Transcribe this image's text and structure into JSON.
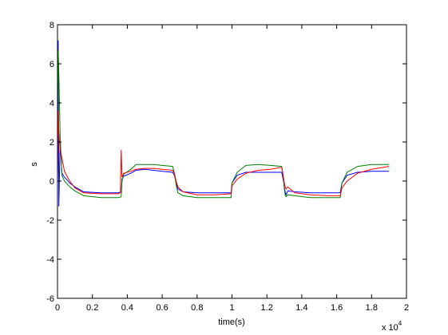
{
  "chart_data": {
    "type": "line",
    "xlabel": "time(s)",
    "ylabel": "s",
    "x_multiplier_label": "x 10",
    "x_multiplier_exponent": "4",
    "xlim": [
      0,
      20000
    ],
    "ylim": [
      -6,
      8
    ],
    "x_ticks": [
      0,
      2000,
      4000,
      6000,
      8000,
      10000,
      12000,
      14000,
      16000,
      18000,
      20000
    ],
    "x_tick_labels": [
      "0",
      "0.2",
      "0.4",
      "0.6",
      "0.8",
      "1",
      "1.2",
      "1.4",
      "1.6",
      "1.8",
      "2"
    ],
    "y_ticks": [
      -6,
      -4,
      -2,
      0,
      2,
      4,
      6,
      8
    ],
    "y_tick_labels": [
      "-6",
      "-4",
      "-2",
      "0",
      "2",
      "4",
      "6",
      "8"
    ],
    "grid": false,
    "legend": "none",
    "series": [
      {
        "color": "#0000ff",
        "points": [
          [
            0,
            0
          ],
          [
            40,
            7.2
          ],
          [
            80,
            -1.3
          ],
          [
            150,
            2
          ],
          [
            250,
            0.4
          ],
          [
            400,
            0.2
          ],
          [
            700,
            -0.1
          ],
          [
            1000,
            -0.3
          ],
          [
            1500,
            -0.55
          ],
          [
            2500,
            -0.6
          ],
          [
            3500,
            -0.6
          ],
          [
            3650,
            -0.55
          ],
          [
            3700,
            0.1
          ],
          [
            3800,
            0.25
          ],
          [
            4200,
            0.4
          ],
          [
            4500,
            0.55
          ],
          [
            5000,
            0.6
          ],
          [
            5500,
            0.55
          ],
          [
            6000,
            0.5
          ],
          [
            6600,
            0.45
          ],
          [
            6700,
            0.3
          ],
          [
            6800,
            -0.1
          ],
          [
            6900,
            -0.4
          ],
          [
            7200,
            -0.55
          ],
          [
            8000,
            -0.6
          ],
          [
            9000,
            -0.6
          ],
          [
            9950,
            -0.6
          ],
          [
            10000,
            -0.1
          ],
          [
            10300,
            0.3
          ],
          [
            10800,
            0.45
          ],
          [
            11500,
            0.45
          ],
          [
            12200,
            0.45
          ],
          [
            12850,
            0.45
          ],
          [
            12950,
            0.0
          ],
          [
            13000,
            -0.3
          ],
          [
            13050,
            -0.55
          ],
          [
            13100,
            -0.7
          ],
          [
            13200,
            -0.5
          ],
          [
            13600,
            -0.55
          ],
          [
            14500,
            -0.6
          ],
          [
            15500,
            -0.6
          ],
          [
            16200,
            -0.6
          ],
          [
            16300,
            -0.1
          ],
          [
            16600,
            0.3
          ],
          [
            17200,
            0.45
          ],
          [
            18000,
            0.5
          ],
          [
            19000,
            0.5
          ]
        ]
      },
      {
        "color": "#008000",
        "points": [
          [
            0,
            0
          ],
          [
            40,
            6.7
          ],
          [
            80,
            5.5
          ],
          [
            150,
            2.4
          ],
          [
            250,
            0.3
          ],
          [
            400,
            0.0
          ],
          [
            700,
            -0.3
          ],
          [
            1000,
            -0.5
          ],
          [
            1500,
            -0.75
          ],
          [
            2500,
            -0.85
          ],
          [
            3500,
            -0.85
          ],
          [
            3650,
            -0.8
          ],
          [
            3700,
            0.0
          ],
          [
            3800,
            0.35
          ],
          [
            4200,
            0.6
          ],
          [
            4500,
            0.85
          ],
          [
            5000,
            0.85
          ],
          [
            5500,
            0.85
          ],
          [
            6000,
            0.8
          ],
          [
            6600,
            0.75
          ],
          [
            6700,
            0.4
          ],
          [
            6800,
            -0.2
          ],
          [
            6900,
            -0.6
          ],
          [
            7200,
            -0.75
          ],
          [
            8000,
            -0.85
          ],
          [
            9000,
            -0.85
          ],
          [
            9950,
            -0.85
          ],
          [
            10000,
            -0.1
          ],
          [
            10300,
            0.45
          ],
          [
            10800,
            0.8
          ],
          [
            11500,
            0.85
          ],
          [
            12200,
            0.8
          ],
          [
            12850,
            0.75
          ],
          [
            12950,
            0.1
          ],
          [
            13000,
            -0.4
          ],
          [
            13050,
            -0.7
          ],
          [
            13100,
            -0.8
          ],
          [
            13200,
            -0.7
          ],
          [
            13600,
            -0.75
          ],
          [
            14500,
            -0.85
          ],
          [
            15500,
            -0.85
          ],
          [
            16200,
            -0.85
          ],
          [
            16300,
            -0.1
          ],
          [
            16600,
            0.45
          ],
          [
            17200,
            0.75
          ],
          [
            18000,
            0.85
          ],
          [
            19000,
            0.85
          ]
        ]
      },
      {
        "color": "#ff0000",
        "points": [
          [
            0,
            0
          ],
          [
            40,
            3.6
          ],
          [
            80,
            2.5
          ],
          [
            150,
            1.6
          ],
          [
            250,
            1.2
          ],
          [
            400,
            0.5
          ],
          [
            700,
            0.0
          ],
          [
            1000,
            -0.35
          ],
          [
            1500,
            -0.6
          ],
          [
            2500,
            -0.65
          ],
          [
            3500,
            -0.65
          ],
          [
            3600,
            -0.6
          ],
          [
            3650,
            1.6
          ],
          [
            3700,
            0.2
          ],
          [
            3800,
            0.4
          ],
          [
            4200,
            0.5
          ],
          [
            4500,
            0.6
          ],
          [
            5000,
            0.65
          ],
          [
            5500,
            0.65
          ],
          [
            6000,
            0.6
          ],
          [
            6600,
            0.55
          ],
          [
            6700,
            0.4
          ],
          [
            6800,
            0.0
          ],
          [
            6900,
            -0.3
          ],
          [
            7200,
            -0.55
          ],
          [
            8000,
            -0.7
          ],
          [
            9000,
            -0.7
          ],
          [
            9950,
            -0.65
          ],
          [
            10000,
            -0.25
          ],
          [
            10300,
            0.1
          ],
          [
            10800,
            0.4
          ],
          [
            11500,
            0.55
          ],
          [
            12200,
            0.6
          ],
          [
            12850,
            0.7
          ],
          [
            12950,
            0.2
          ],
          [
            13000,
            -0.1
          ],
          [
            13050,
            -0.3
          ],
          [
            13100,
            -0.4
          ],
          [
            13200,
            -0.3
          ],
          [
            13600,
            -0.6
          ],
          [
            14500,
            -0.7
          ],
          [
            15500,
            -0.75
          ],
          [
            16200,
            -0.75
          ],
          [
            16300,
            -0.35
          ],
          [
            16600,
            0.0
          ],
          [
            17200,
            0.4
          ],
          [
            18000,
            0.6
          ],
          [
            19000,
            0.75
          ]
        ]
      }
    ]
  }
}
